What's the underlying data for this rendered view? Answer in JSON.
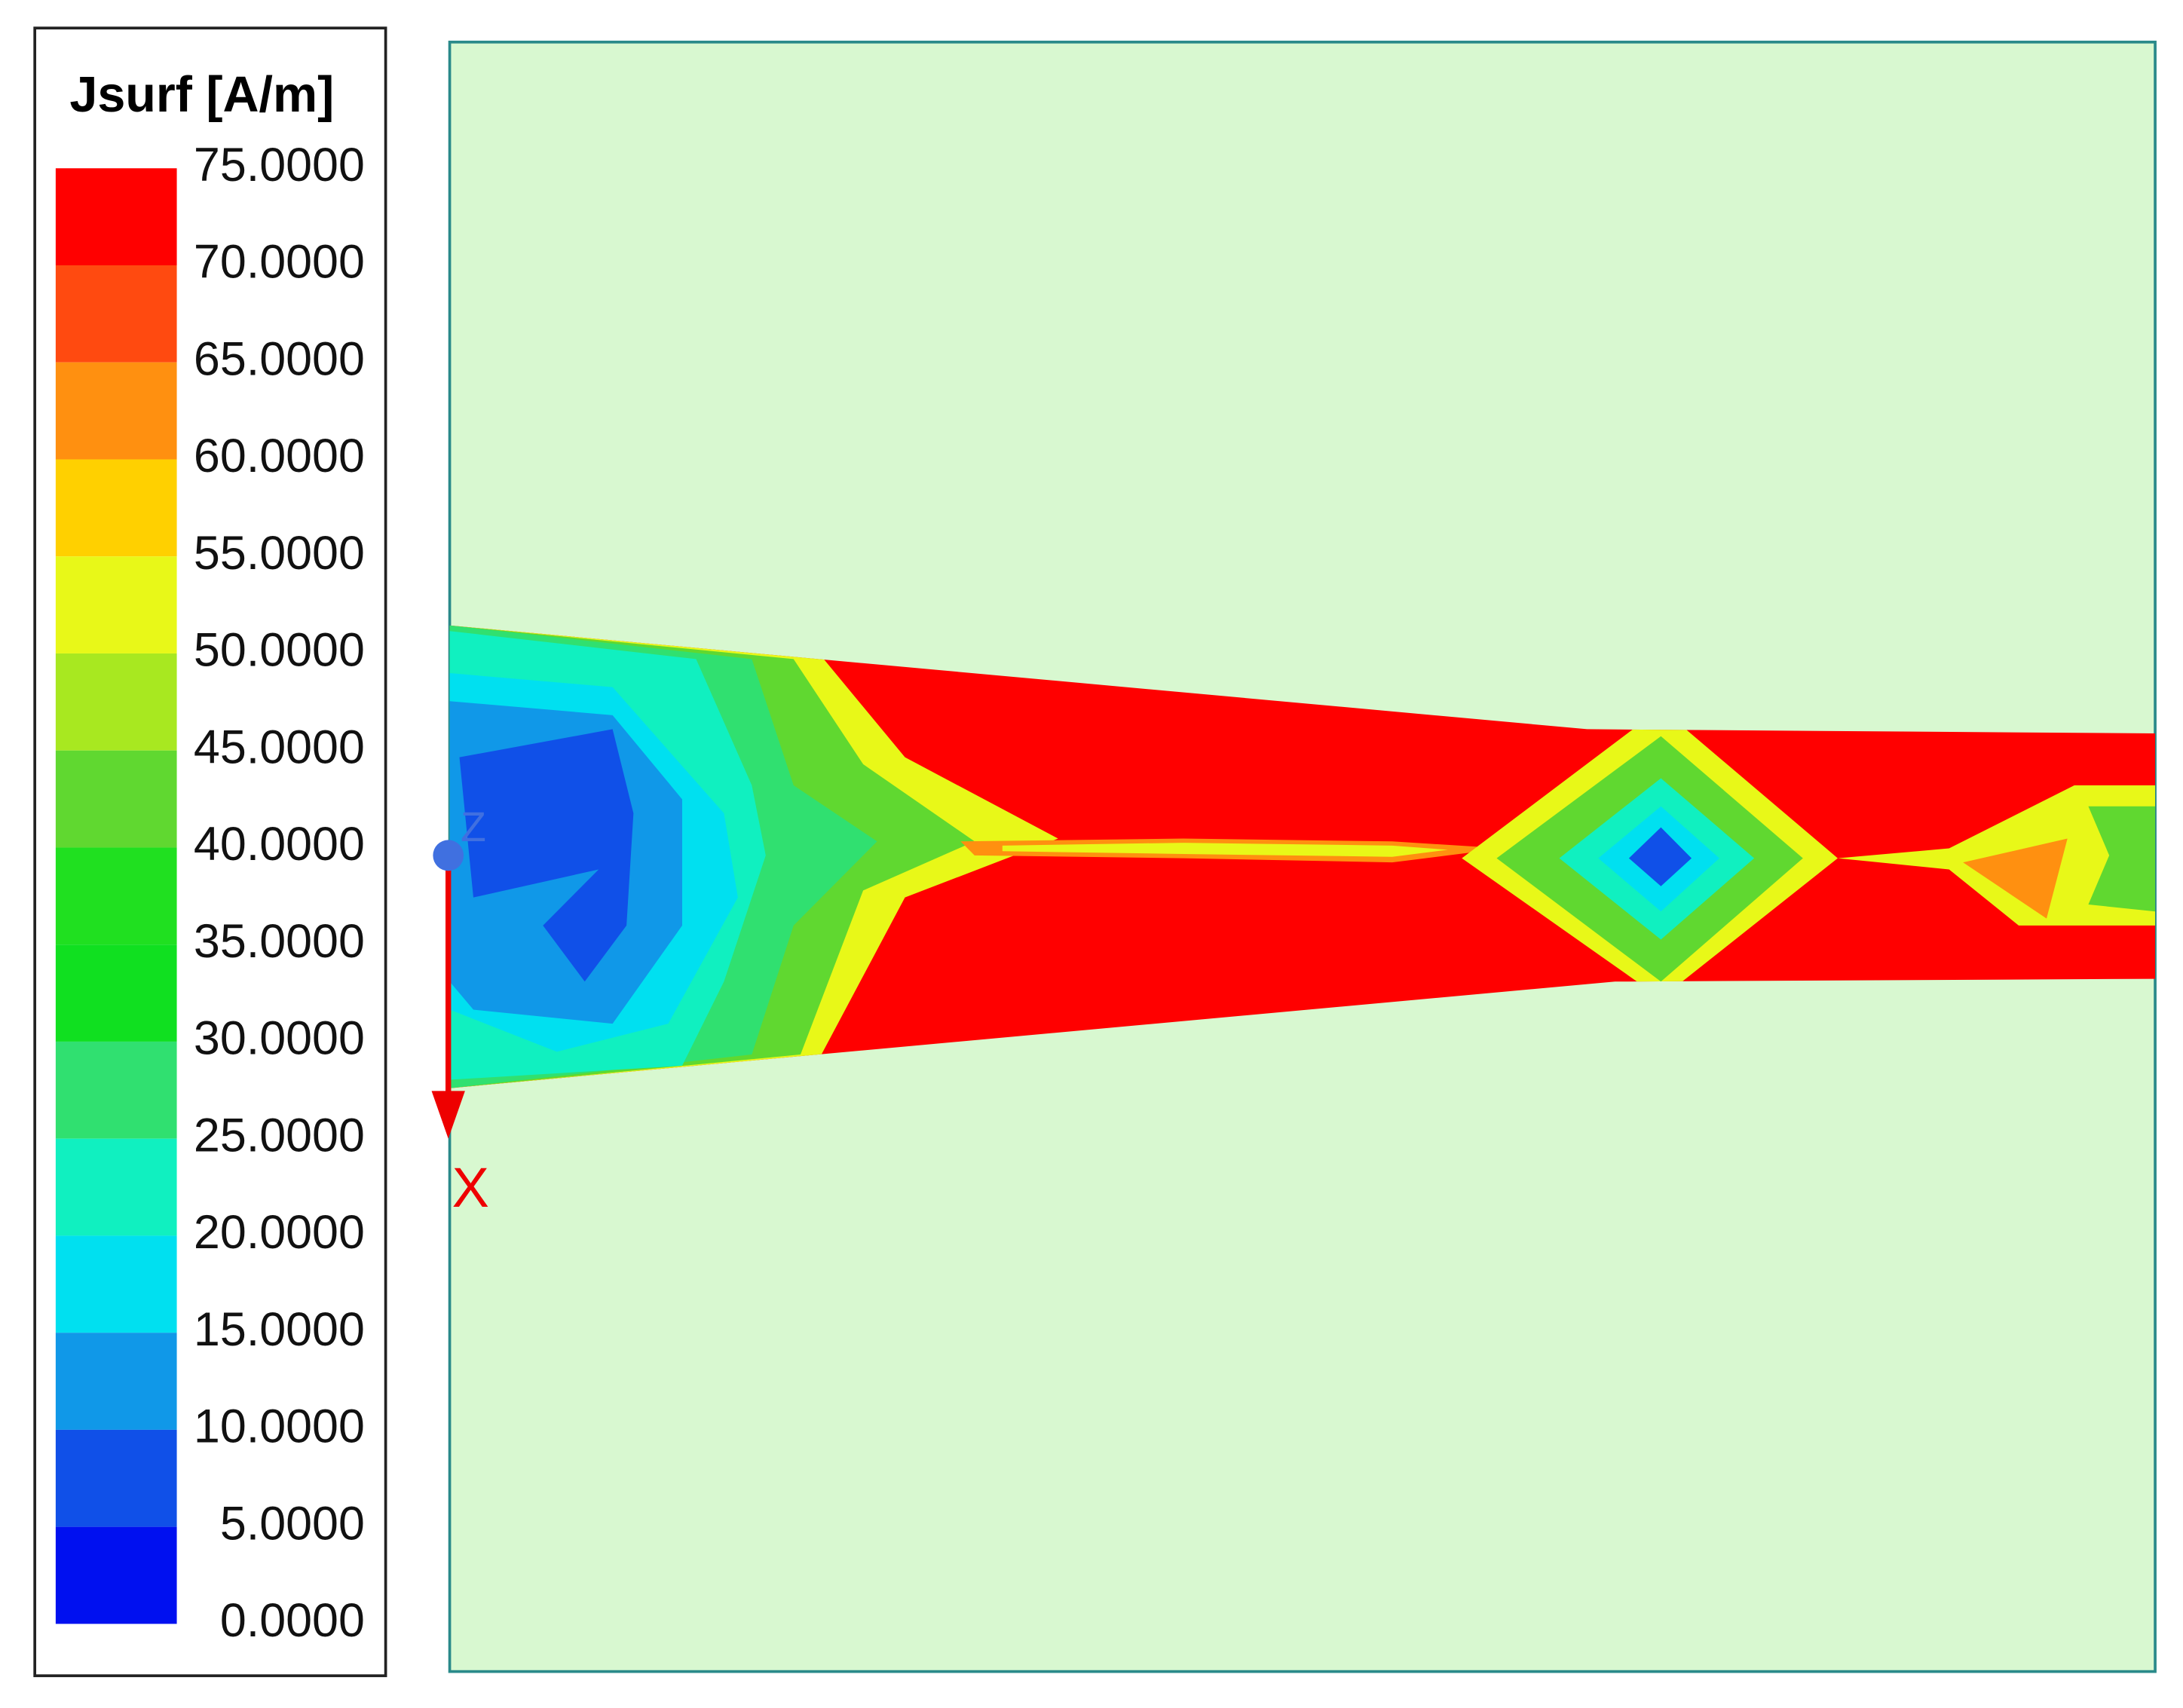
{
  "legend": {
    "title": "Jsurf [A/m]",
    "ticks": [
      {
        "value": 75,
        "label": "75.0000"
      },
      {
        "value": 70,
        "label": "70.0000"
      },
      {
        "value": 65,
        "label": "65.0000"
      },
      {
        "value": 60,
        "label": "60.0000"
      },
      {
        "value": 55,
        "label": "55.0000"
      },
      {
        "value": 50,
        "label": "50.0000"
      },
      {
        "value": 45,
        "label": "45.0000"
      },
      {
        "value": 40,
        "label": "40.0000"
      },
      {
        "value": 35,
        "label": "35.0000"
      },
      {
        "value": 30,
        "label": "30.0000"
      },
      {
        "value": 25,
        "label": "25.0000"
      },
      {
        "value": 20,
        "label": "20.0000"
      },
      {
        "value": 15,
        "label": "15.0000"
      },
      {
        "value": 10,
        "label": "10.0000"
      },
      {
        "value": 5,
        "label": "5.0000"
      },
      {
        "value": 0,
        "label": "0.0000"
      }
    ],
    "colors": [
      "#ff0000",
      "#ff4a10",
      "#ff9010",
      "#ffd000",
      "#e8f818",
      "#a8e820",
      "#60d830",
      "#20e020",
      "#10e020",
      "#30e070",
      "#10f0c0",
      "#00e0f0",
      "#1098e8",
      "#1050e8",
      "#0010f0"
    ]
  },
  "axes": {
    "z_label": "Z",
    "x_label": "X"
  }
}
